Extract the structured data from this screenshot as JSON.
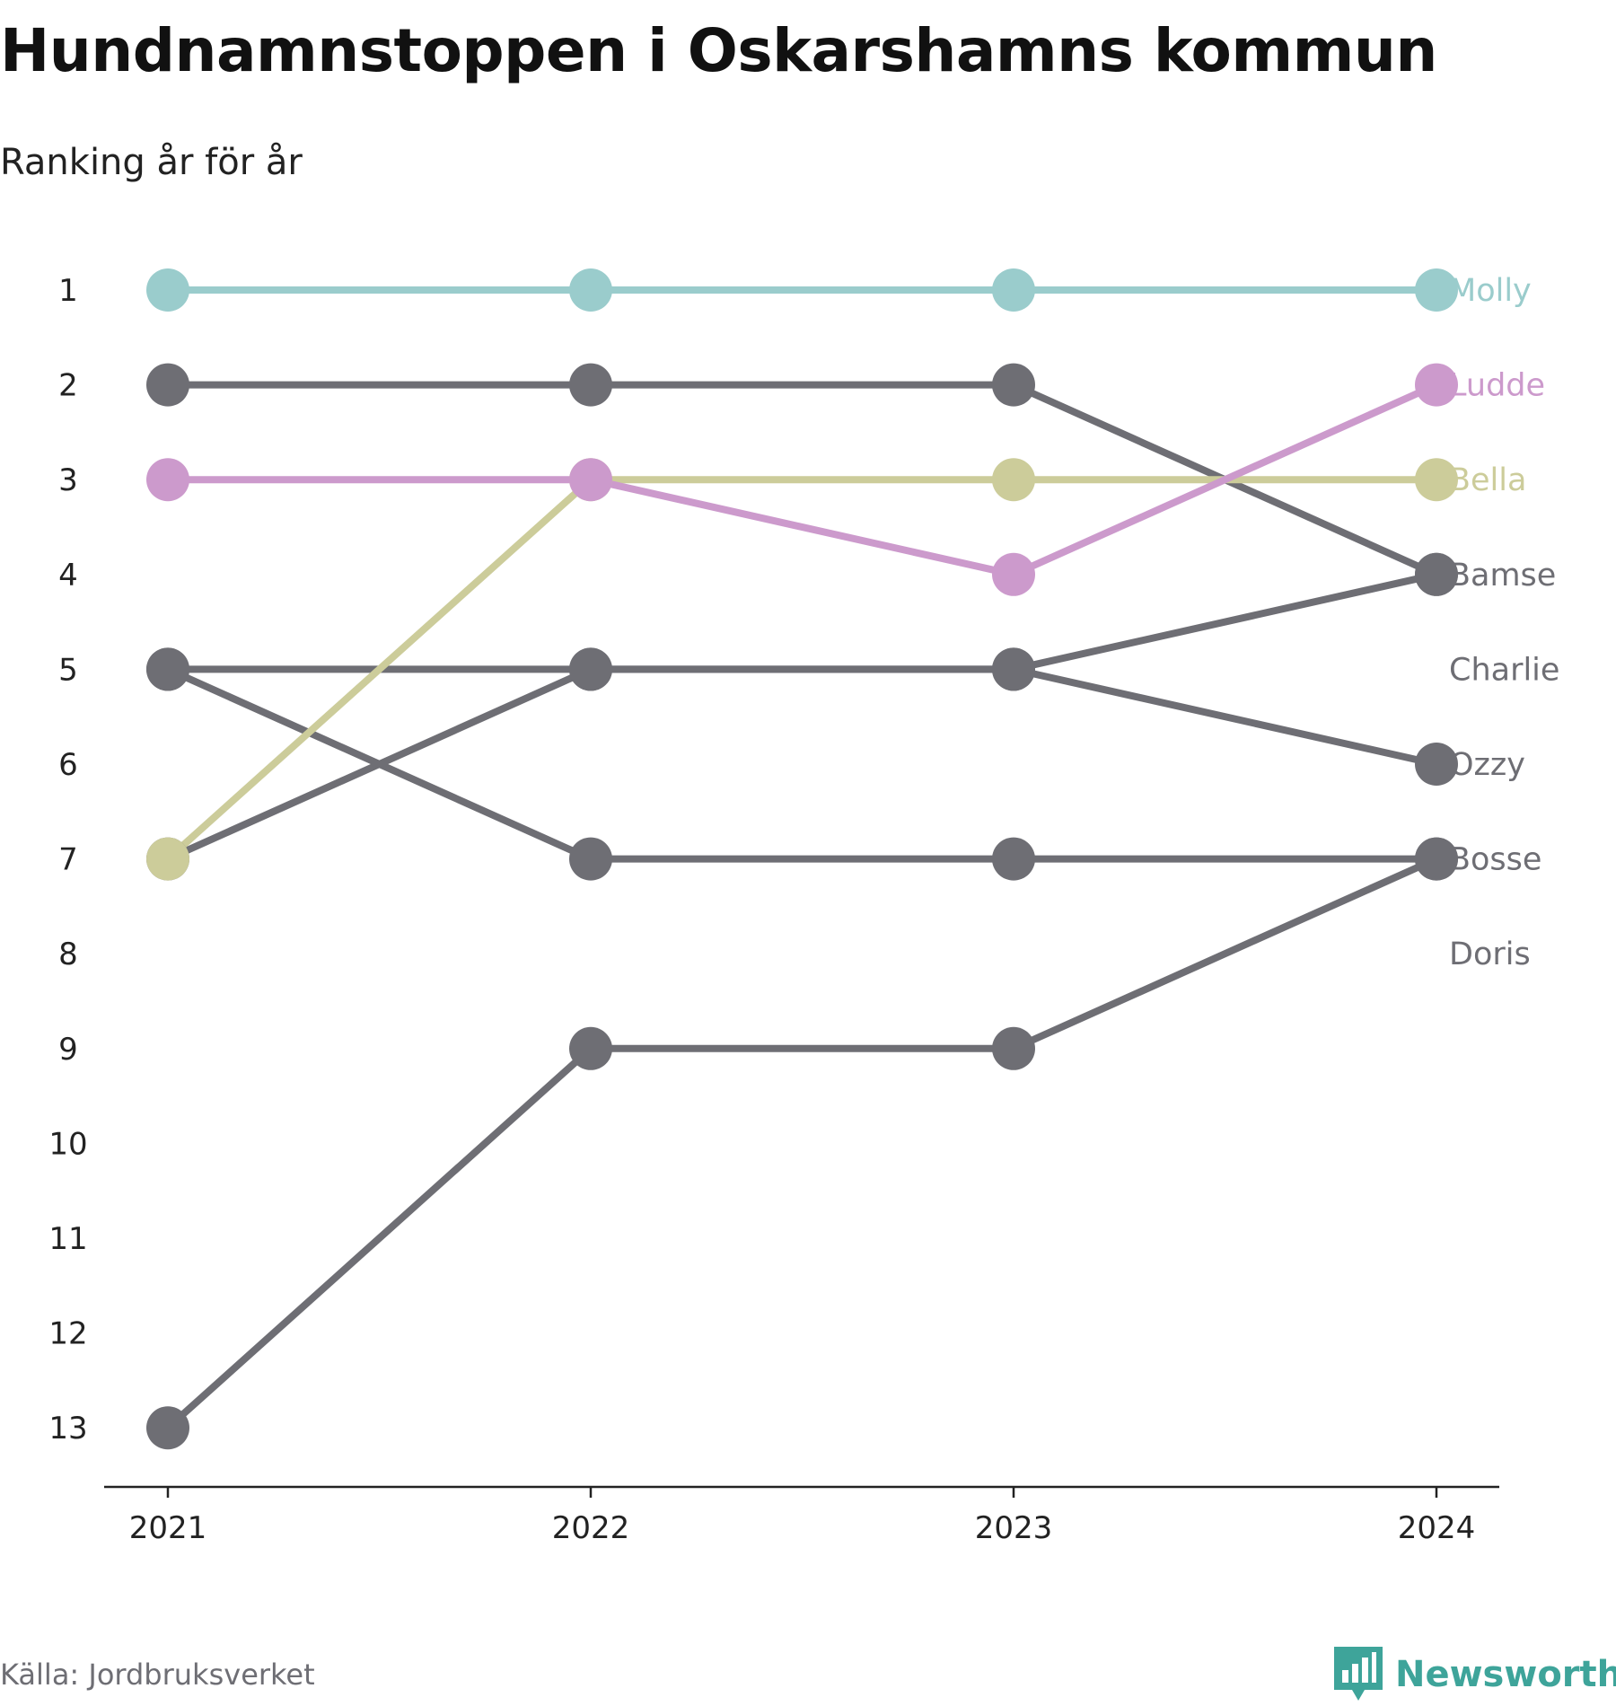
{
  "header": {
    "title": "Hundnamnstoppen i Oskarshamns kommun",
    "subtitle": "Ranking år för år"
  },
  "footer": {
    "source": "Källa: Jordbruksverket",
    "brand": "Newsworthy",
    "brand_color": "#3ea49a",
    "brand_icon": "bar-chart-speech-bubble-icon"
  },
  "chart_data": {
    "type": "line",
    "x": [
      "2021",
      "2022",
      "2023",
      "2024"
    ],
    "y_ticks": [
      "1",
      "2",
      "3",
      "4",
      "5",
      "6",
      "7",
      "8",
      "9",
      "10",
      "11",
      "12",
      "13"
    ],
    "ylim": [
      13,
      1
    ],
    "y_inverted": true,
    "grid": false,
    "legend": "direct labels at right end of lines",
    "series": [
      {
        "name": "Molly",
        "color": "#9acccc",
        "values": [
          1,
          1,
          1,
          1
        ]
      },
      {
        "name": "Ludde",
        "color": "#cc9acc",
        "values": [
          3,
          3,
          4,
          2
        ]
      },
      {
        "name": "Bella",
        "color": "#cccc9a",
        "values": [
          7,
          3,
          3,
          3
        ]
      },
      {
        "name": "Bamse",
        "color": "#6e6e74",
        "values": [
          2,
          2,
          2,
          4
        ]
      },
      {
        "name": "Charlie",
        "color": "#6e6e74",
        "values": [
          7,
          5,
          5,
          4
        ]
      },
      {
        "name": "Ozzy",
        "color": "#6e6e74",
        "values": [
          5,
          5,
          5,
          6
        ]
      },
      {
        "name": "Bosse",
        "color": "#6e6e74",
        "values": [
          5,
          7,
          7,
          7
        ]
      },
      {
        "name": "Doris",
        "color": "#6e6e74",
        "values": [
          13,
          9,
          9,
          7
        ]
      }
    ]
  }
}
